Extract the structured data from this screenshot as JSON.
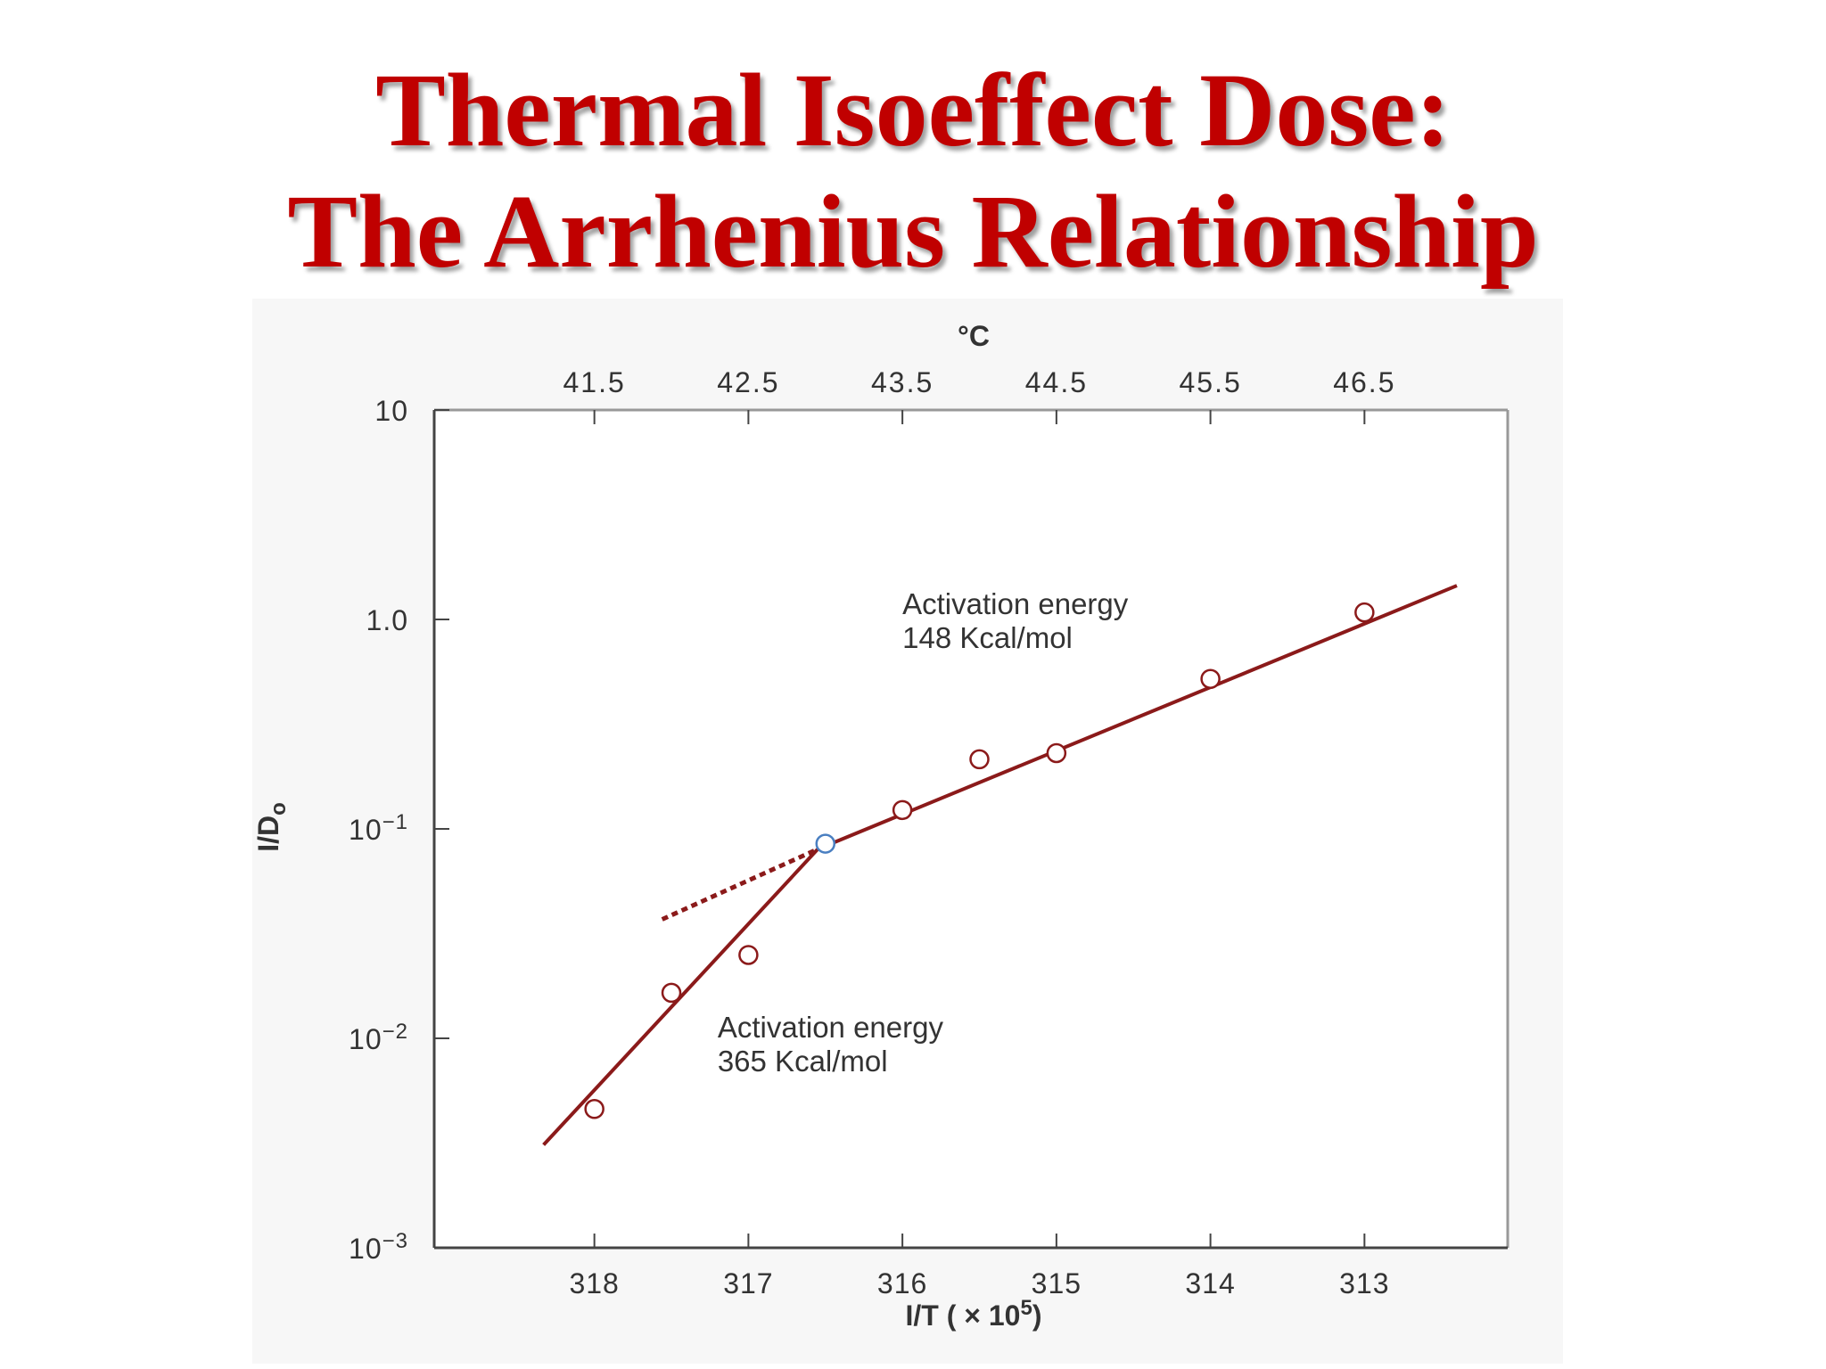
{
  "slide": {
    "title_line1": "Thermal Isoeffect Dose:",
    "title_line2": "The Arrhenius Relationship"
  },
  "chart_data": {
    "type": "scatter",
    "xlabel": "I/T ( × 10",
    "xlabel_sup": "5",
    "xlabel_close": ")",
    "x_ticks": [
      318,
      317,
      316,
      315,
      314,
      313
    ],
    "xlim": [
      319.04,
      312.07
    ],
    "top_axis_label": "°C",
    "top_ticks": [
      {
        "x": 318,
        "label": "41.5"
      },
      {
        "x": 317,
        "label": "42.5"
      },
      {
        "x": 316,
        "label": "43.5"
      },
      {
        "x": 315,
        "label": "44.5"
      },
      {
        "x": 314,
        "label": "45.5"
      },
      {
        "x": 313,
        "label": "46.5"
      }
    ],
    "ylabel": "I/D",
    "ylabel_sub": "o",
    "y_scale": "log",
    "ylim": [
      0.001,
      10
    ],
    "y_ticks": [
      {
        "value": 10,
        "label": "10",
        "sup": ""
      },
      {
        "value": 1,
        "label": "1.0",
        "sup": ""
      },
      {
        "value": 0.1,
        "label": "10",
        "sup": "−1"
      },
      {
        "value": 0.01,
        "label": "10",
        "sup": "−2"
      },
      {
        "value": 0.001,
        "label": "10",
        "sup": "−3"
      }
    ],
    "points": [
      {
        "x": 318.0,
        "y": 0.0046,
        "style": "open-red"
      },
      {
        "x": 317.5,
        "y": 0.0165,
        "style": "open-red"
      },
      {
        "x": 317.0,
        "y": 0.025,
        "style": "open-red"
      },
      {
        "x": 316.5,
        "y": 0.085,
        "style": "open-blue"
      },
      {
        "x": 316.0,
        "y": 0.123,
        "style": "open-red"
      },
      {
        "x": 315.5,
        "y": 0.215,
        "style": "open-red"
      },
      {
        "x": 315.0,
        "y": 0.23,
        "style": "open-red"
      },
      {
        "x": 314.0,
        "y": 0.52,
        "style": "open-red"
      },
      {
        "x": 313.0,
        "y": 1.08,
        "style": "open-red"
      }
    ],
    "point_colors": {
      "open-red": "#8b1a1a",
      "open-blue": "#4a7fc1"
    },
    "lines": [
      {
        "x1": 318.33,
        "y1": 0.0031,
        "x2": 316.55,
        "y2": 0.08,
        "dashed": false
      },
      {
        "x1": 316.55,
        "y1": 0.08,
        "x2": 312.4,
        "y2": 1.45,
        "dashed": false
      },
      {
        "x1": 317.56,
        "y1": 0.037,
        "x2": 316.55,
        "y2": 0.08,
        "dashed": true
      }
    ],
    "line_color": "#8b1a1a",
    "annotations": [
      {
        "lines": [
          "Activation energy",
          "148 Kcal/mol"
        ],
        "x": 316.0,
        "y": 1.06
      },
      {
        "lines": [
          "Activation energy",
          "365 Kcal/mol"
        ],
        "x": 317.2,
        "y": 0.0101
      }
    ]
  }
}
